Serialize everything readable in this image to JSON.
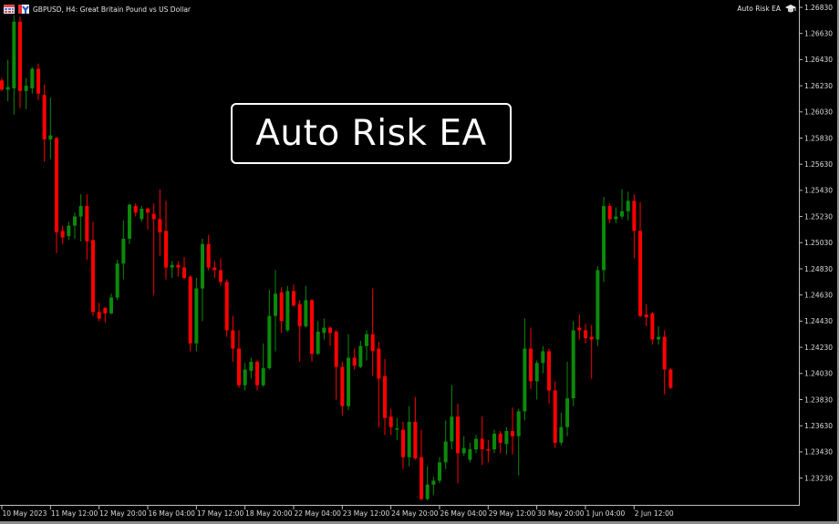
{
  "header": {
    "symbol_text": "GBPUSD, H4:  Great Britain Pound vs US Dollar",
    "ea_name": "Auto Risk EA",
    "icons": [
      "chart-grid-icon",
      "one-click-trading-icon",
      "graduation-cap-icon"
    ]
  },
  "overlay": {
    "title": "Auto Risk EA"
  },
  "colors": {
    "bull": "#0b8a0b",
    "bear": "#ff0000",
    "background": "#000000",
    "axis": "#bfbfbf"
  },
  "chart_data": {
    "type": "candlestick",
    "symbol": "GBPUSD",
    "timeframe": "H4",
    "ylim": [
      1.2204,
      1.269
    ],
    "y_ticks": [
      "1.26830",
      "1.26630",
      "1.26430",
      "1.26230",
      "1.26030",
      "1.25830",
      "1.25630",
      "1.25430",
      "1.25230",
      "1.25030",
      "1.24830",
      "1.24630",
      "1.24430",
      "1.24230",
      "1.24030",
      "1.23830",
      "1.23630",
      "1.23430",
      "1.23230"
    ],
    "x_ticks": [
      "10 May 2023",
      "11 May 12:00",
      "12 May 20:00",
      "16 May 04:00",
      "17 May 12:00",
      "18 May 20:00",
      "22 May 04:00",
      "23 May 12:00",
      "24 May 20:00",
      "26 May 04:00",
      "29 May 12:00",
      "30 May 20:00",
      "1 Jun 04:00",
      "2 Jun 12:00"
    ],
    "ohlc": [
      [
        1.2627,
        1.2629,
        1.2619,
        1.262
      ],
      [
        1.262,
        1.2643,
        1.2611,
        1.2622
      ],
      [
        1.2621,
        1.2677,
        1.2601,
        1.2672
      ],
      [
        1.2672,
        1.2676,
        1.2606,
        1.2619
      ],
      [
        1.2619,
        1.2629,
        1.2605,
        1.2623
      ],
      [
        1.2621,
        1.2637,
        1.2617,
        1.2636
      ],
      [
        1.2636,
        1.264,
        1.2612,
        1.2617
      ],
      [
        1.2616,
        1.2624,
        1.2565,
        1.2582
      ],
      [
        1.2582,
        1.2614,
        1.2567,
        1.2585
      ],
      [
        1.2583,
        1.2584,
        1.2495,
        1.2511
      ],
      [
        1.2512,
        1.2516,
        1.2502,
        1.2507
      ],
      [
        1.2508,
        1.2519,
        1.2505,
        1.2516
      ],
      [
        1.2516,
        1.2526,
        1.2506,
        1.2523
      ],
      [
        1.2523,
        1.254,
        1.2504,
        1.2531
      ],
      [
        1.2531,
        1.254,
        1.249,
        1.2504
      ],
      [
        1.2505,
        1.2519,
        1.2447,
        1.245
      ],
      [
        1.245,
        1.2457,
        1.2443,
        1.2445
      ],
      [
        1.2453,
        1.2454,
        1.2442,
        1.2449
      ],
      [
        1.2449,
        1.2464,
        1.2448,
        1.2461
      ],
      [
        1.2461,
        1.249,
        1.2459,
        1.2487
      ],
      [
        1.2487,
        1.252,
        1.2475,
        1.2506
      ],
      [
        1.2506,
        1.2533,
        1.2502,
        1.2532
      ],
      [
        1.2531,
        1.2533,
        1.2523,
        1.2526
      ],
      [
        1.2521,
        1.2531,
        1.2519,
        1.2529
      ],
      [
        1.2529,
        1.253,
        1.2513,
        1.2526
      ],
      [
        1.2525,
        1.2533,
        1.2463,
        1.2521
      ],
      [
        1.2521,
        1.2544,
        1.2493,
        1.2511
      ],
      [
        1.2512,
        1.2535,
        1.2475,
        1.2484
      ],
      [
        1.2484,
        1.2489,
        1.2476,
        1.2486
      ],
      [
        1.2486,
        1.2489,
        1.2477,
        1.2484
      ],
      [
        1.2484,
        1.2492,
        1.2475,
        1.2476
      ],
      [
        1.2477,
        1.2478,
        1.242,
        1.2426
      ],
      [
        1.2426,
        1.2476,
        1.242,
        1.2468
      ],
      [
        1.2468,
        1.2506,
        1.2443,
        1.2502
      ],
      [
        1.2502,
        1.2509,
        1.2482,
        1.2484
      ],
      [
        1.2484,
        1.2489,
        1.2476,
        1.2482
      ],
      [
        1.2482,
        1.2491,
        1.247,
        1.2473
      ],
      [
        1.2473,
        1.2475,
        1.2431,
        1.2436
      ],
      [
        1.2436,
        1.2447,
        1.2412,
        1.2422
      ],
      [
        1.2422,
        1.2436,
        1.2392,
        1.2394
      ],
      [
        1.2394,
        1.2411,
        1.239,
        1.2406
      ],
      [
        1.2405,
        1.2415,
        1.2399,
        1.2412
      ],
      [
        1.2412,
        1.2413,
        1.239,
        1.2394
      ],
      [
        1.2394,
        1.2426,
        1.2393,
        1.2407
      ],
      [
        1.2407,
        1.2467,
        1.2406,
        1.2447
      ],
      [
        1.2447,
        1.2482,
        1.242,
        1.2464
      ],
      [
        1.2465,
        1.2469,
        1.2434,
        1.2443
      ],
      [
        1.2436,
        1.247,
        1.2435,
        1.2466
      ],
      [
        1.2466,
        1.2471,
        1.2454,
        1.2455
      ],
      [
        1.2456,
        1.2459,
        1.2412,
        1.2439
      ],
      [
        1.2439,
        1.247,
        1.2438,
        1.2459
      ],
      [
        1.2459,
        1.246,
        1.2412,
        1.2418
      ],
      [
        1.2418,
        1.2443,
        1.2417,
        1.2435
      ],
      [
        1.2434,
        1.2445,
        1.2429,
        1.2438
      ],
      [
        1.2438,
        1.2439,
        1.2424,
        1.2434
      ],
      [
        1.2435,
        1.2436,
        1.2383,
        1.2408
      ],
      [
        1.2408,
        1.2412,
        1.2371,
        1.2378
      ],
      [
        1.2378,
        1.2433,
        1.2375,
        1.2415
      ],
      [
        1.2415,
        1.2422,
        1.2406,
        1.2409
      ],
      [
        1.2408,
        1.2428,
        1.2407,
        1.2424
      ],
      [
        1.2424,
        1.2436,
        1.2413,
        1.2433
      ],
      [
        1.2433,
        1.2468,
        1.2401,
        1.242
      ],
      [
        1.2422,
        1.2427,
        1.2362,
        1.2399
      ],
      [
        1.2401,
        1.2414,
        1.2356,
        1.2369
      ],
      [
        1.237,
        1.2376,
        1.2356,
        1.2362
      ],
      [
        1.236,
        1.2369,
        1.2352,
        1.2361
      ],
      [
        1.236,
        1.2366,
        1.233,
        1.2339
      ],
      [
        1.2339,
        1.2378,
        1.2332,
        1.2366
      ],
      [
        1.2366,
        1.2385,
        1.2337,
        1.2338
      ],
      [
        1.2339,
        1.236,
        1.2306,
        1.2307
      ],
      [
        1.2307,
        1.2332,
        1.2306,
        1.2318
      ],
      [
        1.2318,
        1.2324,
        1.231,
        1.2321
      ],
      [
        1.2321,
        1.2339,
        1.2319,
        1.2335
      ],
      [
        1.2335,
        1.2367,
        1.233,
        1.2351
      ],
      [
        1.2351,
        1.2394,
        1.2345,
        1.237
      ],
      [
        1.237,
        1.238,
        1.2319,
        1.2342
      ],
      [
        1.2342,
        1.2355,
        1.234,
        1.2346
      ],
      [
        1.2337,
        1.235,
        1.2335,
        1.2345
      ],
      [
        1.2345,
        1.2356,
        1.2342,
        1.2353
      ],
      [
        1.2353,
        1.237,
        1.2333,
        1.2345
      ],
      [
        1.2345,
        1.2352,
        1.2335,
        1.2344
      ],
      [
        1.2345,
        1.236,
        1.2342,
        1.2357
      ],
      [
        1.2357,
        1.2359,
        1.2342,
        1.235
      ],
      [
        1.2349,
        1.2362,
        1.2341,
        1.2359
      ],
      [
        1.2359,
        1.2377,
        1.2341,
        1.2355
      ],
      [
        1.2355,
        1.2376,
        1.2325,
        1.2374
      ],
      [
        1.2374,
        1.2445,
        1.2367,
        1.2422
      ],
      [
        1.2422,
        1.2438,
        1.2391,
        1.2397
      ],
      [
        1.2397,
        1.2413,
        1.2383,
        1.2411
      ],
      [
        1.2411,
        1.2424,
        1.2403,
        1.242
      ],
      [
        1.242,
        1.2422,
        1.238,
        1.239
      ],
      [
        1.239,
        1.2397,
        1.2346,
        1.235
      ],
      [
        1.235,
        1.2373,
        1.2348,
        1.2362
      ],
      [
        1.2362,
        1.2412,
        1.2355,
        1.2384
      ],
      [
        1.2384,
        1.2443,
        1.2378,
        1.2436
      ],
      [
        1.2438,
        1.2448,
        1.2429,
        1.2436
      ],
      [
        1.2436,
        1.2441,
        1.2426,
        1.243
      ],
      [
        1.2431,
        1.244,
        1.2399,
        1.2429
      ],
      [
        1.2429,
        1.2485,
        1.2424,
        1.2482
      ],
      [
        1.2482,
        1.2538,
        1.2473,
        1.2531
      ],
      [
        1.2531,
        1.2533,
        1.2518,
        1.2521
      ],
      [
        1.2521,
        1.253,
        1.2518,
        1.2523
      ],
      [
        1.2523,
        1.2544,
        1.2521,
        1.2527
      ],
      [
        1.2527,
        1.2542,
        1.252,
        1.2535
      ],
      [
        1.2535,
        1.254,
        1.2491,
        1.2512
      ],
      [
        1.2512,
        1.2534,
        1.2446,
        1.2447
      ],
      [
        1.2448,
        1.2456,
        1.2439,
        1.2446
      ],
      [
        1.2449,
        1.245,
        1.2425,
        1.2429
      ],
      [
        1.2429,
        1.2439,
        1.2425,
        1.2431
      ],
      [
        1.2431,
        1.2436,
        1.2387,
        1.2406
      ],
      [
        1.2406,
        1.2407,
        1.2391,
        1.2392
      ]
    ],
    "grid": false
  }
}
